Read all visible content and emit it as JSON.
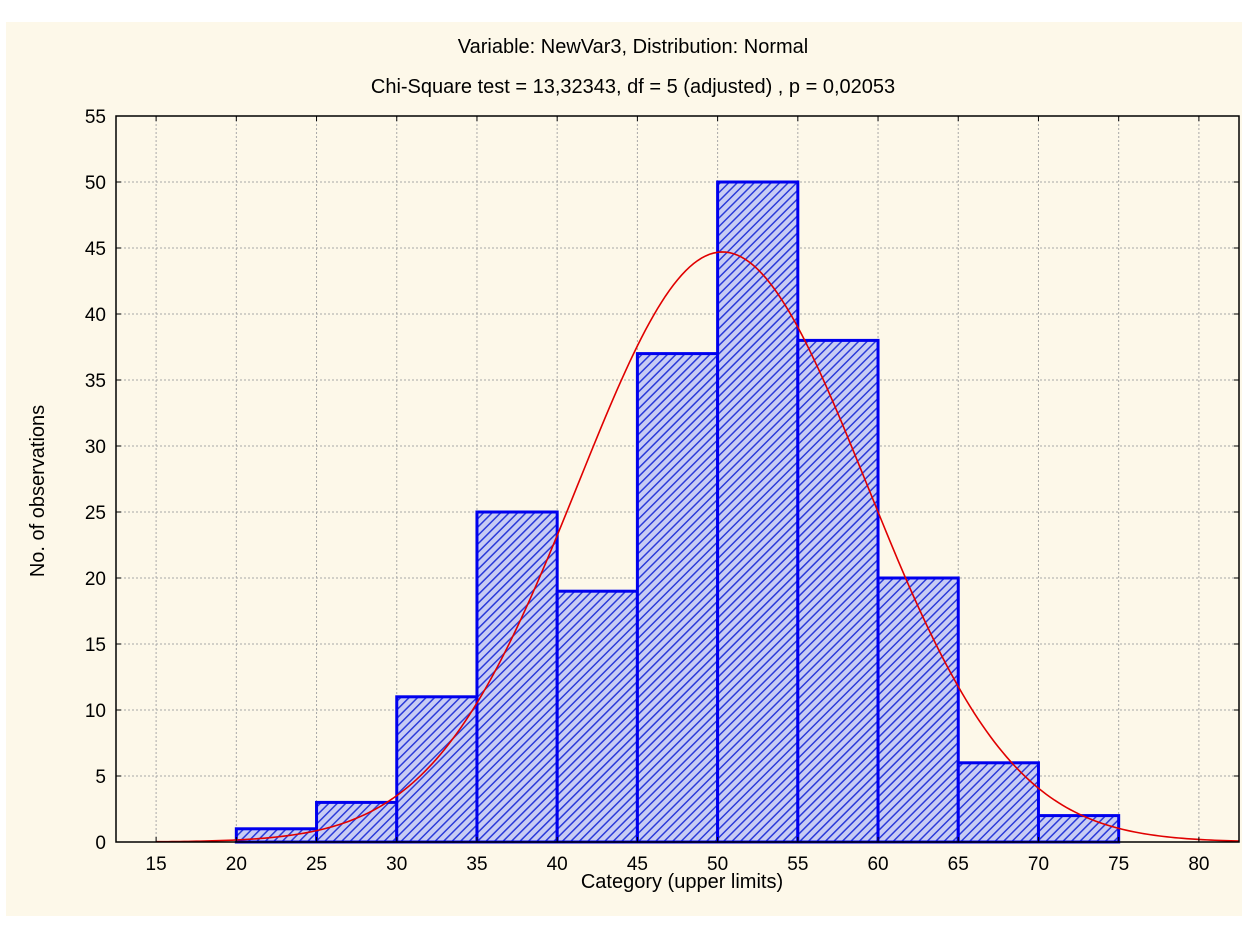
{
  "chart_data": {
    "type": "bar",
    "title": "Variable: NewVar3, Distribution: Normal",
    "subtitle": "Chi-Square test = 13,32343, df = 5 (adjusted) , p = 0,02053",
    "xlabel": "Category (upper limits)",
    "ylabel": "No. of observations",
    "xlim": [
      12.5,
      82.5
    ],
    "ylim": [
      0,
      55
    ],
    "xticks": [
      15,
      20,
      25,
      30,
      35,
      40,
      45,
      50,
      55,
      60,
      65,
      70,
      75,
      80
    ],
    "yticks": [
      0,
      5,
      10,
      15,
      20,
      25,
      30,
      35,
      40,
      45,
      50,
      55
    ],
    "bins": [
      {
        "lower": 20,
        "upper": 25,
        "count": 1
      },
      {
        "lower": 25,
        "upper": 30,
        "count": 3
      },
      {
        "lower": 30,
        "upper": 35,
        "count": 11
      },
      {
        "lower": 35,
        "upper": 40,
        "count": 25
      },
      {
        "lower": 40,
        "upper": 45,
        "count": 19
      },
      {
        "lower": 45,
        "upper": 50,
        "count": 37
      },
      {
        "lower": 50,
        "upper": 55,
        "count": 50
      },
      {
        "lower": 55,
        "upper": 60,
        "count": 38
      },
      {
        "lower": 60,
        "upper": 65,
        "count": 20
      },
      {
        "lower": 65,
        "upper": 70,
        "count": 6
      },
      {
        "lower": 70,
        "upper": 75,
        "count": 2
      }
    ],
    "fitted_curve": {
      "distribution": "normal",
      "mean": 50.3,
      "sd": 9.0,
      "peak": 44.7,
      "x_range": [
        15,
        82.5
      ]
    },
    "grid": true,
    "legend": "none",
    "colors": {
      "bar_stroke": "#0000ee",
      "bar_fill": "#c8ccf4",
      "bar_hatch": "#2b3bd9",
      "curve": "#e00000",
      "background": "#fdf8e9"
    }
  }
}
